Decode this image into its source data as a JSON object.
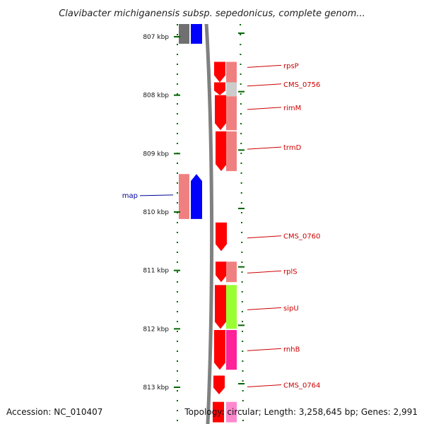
{
  "title": "Clavibacter michiganensis subsp. sepedonicus, complete genom...",
  "footer": {
    "accession": "Accession: NC_010407",
    "topology": "Topology: circular; Length: 3,258,645 bp; Genes: 2,991"
  },
  "colors": {
    "cds": "#ff0000",
    "cds_light": "#f08080",
    "rrna_blue": "#0000ff",
    "label_red": "#cc0000",
    "label_blue": "#000099",
    "tick_green": "#006600",
    "backbone": "#808080",
    "lime": "#99ff33",
    "magenta": "#ff2299",
    "grey": "#cccccc"
  },
  "axis": {
    "start_kbp": 806.6,
    "end_kbp": 813.6,
    "ticks": [
      {
        "kbp": 807,
        "label": "807 kbp"
      },
      {
        "kbp": 808,
        "label": "808 kbp"
      },
      {
        "kbp": 809,
        "label": "809 kbp"
      },
      {
        "kbp": 810,
        "label": "810 kbp"
      },
      {
        "kbp": 811,
        "label": "811 kbp"
      },
      {
        "kbp": 812,
        "label": "812 kbp"
      },
      {
        "kbp": 813,
        "label": "813 kbp"
      }
    ]
  },
  "labels": [
    {
      "text": "rpsP",
      "kbp": 807.5,
      "side": "right",
      "color": "#cc0000"
    },
    {
      "text": "CMS_0756",
      "kbp": 807.82,
      "side": "right",
      "color": "#cc0000"
    },
    {
      "text": "rimM",
      "kbp": 808.22,
      "side": "right",
      "color": "#cc0000"
    },
    {
      "text": "trmD",
      "kbp": 808.9,
      "side": "right",
      "color": "#cc0000"
    },
    {
      "text": "map",
      "kbp": 809.72,
      "side": "left",
      "color": "#000099"
    },
    {
      "text": "CMS_0760",
      "kbp": 810.42,
      "side": "right",
      "color": "#cc0000"
    },
    {
      "text": "rplS",
      "kbp": 811.02,
      "side": "right",
      "color": "#cc0000"
    },
    {
      "text": "sipU",
      "kbp": 811.65,
      "side": "right",
      "color": "#cc0000"
    },
    {
      "text": "rnhB",
      "kbp": 812.35,
      "side": "right",
      "color": "#cc0000"
    },
    {
      "text": "CMS_0764",
      "kbp": 812.97,
      "side": "right",
      "color": "#cc0000"
    }
  ],
  "features": [
    {
      "track": "far_left",
      "start": 806.6,
      "end": 807.12,
      "color": "#707070",
      "shape": "box"
    },
    {
      "track": "left_inner",
      "start": 806.6,
      "end": 807.12,
      "color": "#0000ff",
      "shape": "box"
    },
    {
      "track": "mid",
      "start": 807.43,
      "end": 807.78,
      "color": "#ff0000",
      "shape": "arrow_down"
    },
    {
      "track": "mid",
      "start": 807.78,
      "end": 808.0,
      "color": "#ff0000",
      "shape": "arrow_down"
    },
    {
      "track": "mid",
      "start": 808.0,
      "end": 808.6,
      "color": "#ff0000",
      "shape": "arrow_down"
    },
    {
      "track": "mid",
      "start": 808.62,
      "end": 809.3,
      "color": "#ff0000",
      "shape": "arrow_down"
    },
    {
      "track": "right",
      "start": 807.43,
      "end": 807.78,
      "color": "#f08080",
      "shape": "box"
    },
    {
      "track": "right",
      "start": 807.78,
      "end": 808.02,
      "color": "#cccccc",
      "shape": "box"
    },
    {
      "track": "right",
      "start": 808.02,
      "end": 808.6,
      "color": "#f08080",
      "shape": "box"
    },
    {
      "track": "right",
      "start": 808.62,
      "end": 809.3,
      "color": "#f08080",
      "shape": "box"
    },
    {
      "track": "far_left",
      "start": 809.35,
      "end": 810.12,
      "color": "#f08080",
      "shape": "box"
    },
    {
      "track": "left_inner",
      "start": 809.35,
      "end": 810.12,
      "color": "#0000ff",
      "shape": "arrow_up"
    },
    {
      "track": "mid",
      "start": 810.18,
      "end": 810.67,
      "color": "#ff0000",
      "shape": "arrow_down"
    },
    {
      "track": "mid",
      "start": 810.85,
      "end": 811.2,
      "color": "#ff0000",
      "shape": "arrow_down"
    },
    {
      "track": "right",
      "start": 810.85,
      "end": 811.2,
      "color": "#f08080",
      "shape": "box"
    },
    {
      "track": "mid",
      "start": 811.25,
      "end": 812.0,
      "color": "#ff0000",
      "shape": "arrow_down"
    },
    {
      "track": "right",
      "start": 811.25,
      "end": 812.0,
      "color": "#99ff33",
      "shape": "box"
    },
    {
      "track": "mid",
      "start": 812.02,
      "end": 812.7,
      "color": "#ff0000",
      "shape": "arrow_down"
    },
    {
      "track": "right",
      "start": 812.02,
      "end": 812.7,
      "color": "#ff2299",
      "shape": "box"
    },
    {
      "track": "mid",
      "start": 812.8,
      "end": 813.12,
      "color": "#ff0000",
      "shape": "arrow_down"
    },
    {
      "track": "mid",
      "start": 813.25,
      "end": 813.6,
      "color": "#ff0000",
      "shape": "box"
    },
    {
      "track": "right",
      "start": 813.25,
      "end": 813.6,
      "color": "#ff88cc",
      "shape": "box"
    }
  ]
}
